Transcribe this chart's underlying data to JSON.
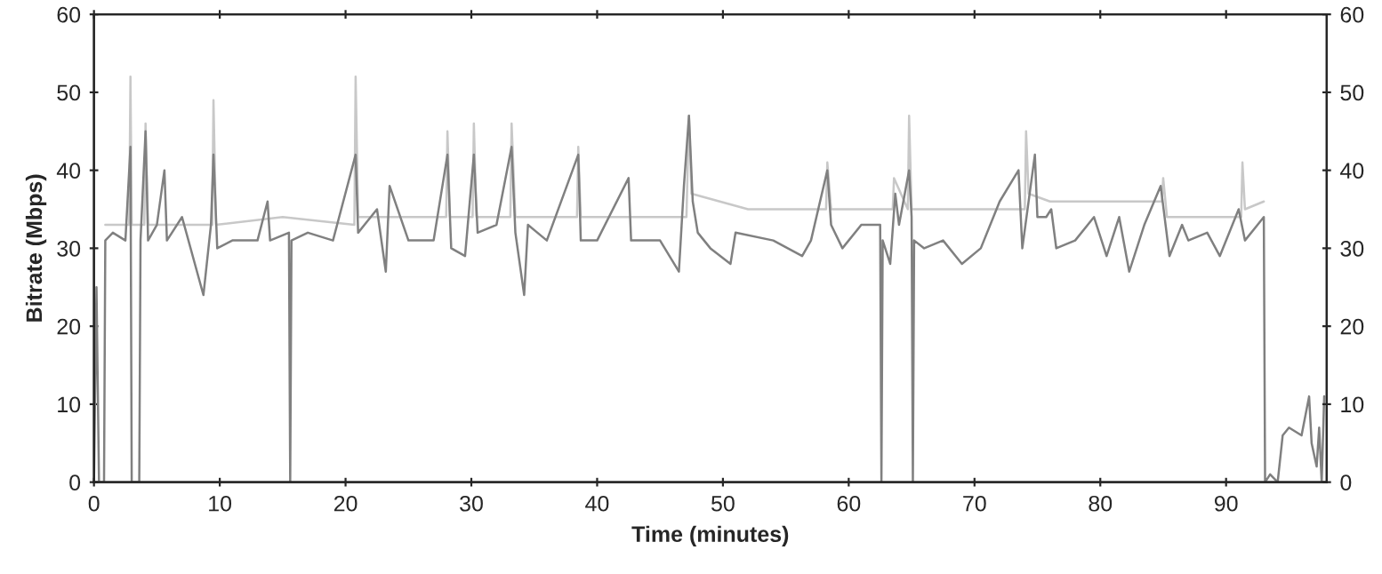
{
  "chart_data": {
    "type": "line",
    "xlabel": "Time (minutes)",
    "ylabel": "Bitrate (Mbps)",
    "xlim": [
      0,
      98
    ],
    "xticks": [
      0,
      10,
      20,
      30,
      40,
      50,
      60,
      70,
      80,
      90
    ],
    "ylim": [
      0,
      60
    ],
    "yticks": [
      0,
      10,
      20,
      30,
      40,
      50,
      60
    ],
    "y2lim": [
      0,
      60
    ],
    "y2ticks": [
      0,
      10,
      20,
      30,
      40,
      50,
      60
    ],
    "grid": false,
    "marker": "none",
    "line_style": "solid",
    "series": [
      {
        "color": "#c8c8c8",
        "x": [
          0.9,
          2.8,
          2.9,
          3.0,
          4.0,
          4.1,
          4.3,
          9.4,
          9.5,
          9.7,
          15,
          20.7,
          20.8,
          21,
          28.0,
          28.1,
          28.3,
          30.1,
          30.2,
          30.4,
          33.1,
          33.2,
          33.5,
          38.4,
          38.5,
          38.7,
          47.1,
          47.3,
          47.5,
          52,
          58.2,
          58.3,
          58.6,
          63.5,
          63.6,
          64.7,
          64.8,
          65.0,
          70,
          74.0,
          74.1,
          74.3,
          76,
          84.9,
          85,
          85.3,
          91.2,
          91.3,
          91.5,
          93
        ],
        "values": [
          33,
          33,
          52,
          33,
          33,
          46,
          33,
          33,
          49,
          33,
          34,
          33,
          52,
          34,
          34,
          45,
          34,
          34,
          46,
          34,
          34,
          46,
          34,
          34,
          43,
          34,
          34,
          47,
          37,
          35,
          35,
          41,
          35,
          35,
          39,
          35,
          47,
          35,
          35,
          35,
          45,
          37,
          36,
          36,
          39,
          34,
          34,
          41,
          35,
          36
        ]
      },
      {
        "color": "#808080",
        "x": [
          0,
          0.2,
          0.4,
          0.8,
          0.9,
          1.5,
          2.5,
          2.9,
          3.0,
          3.6,
          3.7,
          4.1,
          4.3,
          5,
          5.6,
          5.8,
          7,
          8.7,
          9.3,
          9.5,
          9.8,
          11,
          13,
          13.8,
          14,
          15.5,
          15.6,
          15.7,
          17,
          19,
          20.8,
          21,
          22.5,
          23.2,
          23.5,
          25,
          27,
          28.1,
          28.4,
          29.5,
          30.2,
          30.5,
          32,
          33.2,
          33.5,
          34.2,
          34.5,
          36,
          38.5,
          38.7,
          40,
          42.5,
          42.7,
          45,
          46.5,
          46.9,
          47.3,
          47.6,
          48,
          49,
          50.6,
          51,
          54,
          56.3,
          57,
          58.3,
          58.6,
          59.5,
          61,
          62.5,
          62.6,
          62.7,
          63.3,
          63.7,
          64,
          64.8,
          65.0,
          65.1,
          65.2,
          66,
          67.5,
          69,
          70.5,
          72,
          73.5,
          73.8,
          74.8,
          75,
          75.7,
          76.1,
          76.5,
          78,
          79.5,
          80.5,
          81.5,
          82.3,
          83.5,
          84.8,
          85.5,
          86.5,
          87,
          88.5,
          89.5,
          91,
          91.5,
          93,
          93.1,
          93.5,
          94.1,
          94.5,
          95,
          96,
          96.6,
          96.8,
          97.2,
          97.4,
          97.6,
          97.8
        ],
        "values": [
          0,
          25,
          0,
          0,
          31,
          32,
          31,
          43,
          0,
          0,
          31,
          45,
          31,
          33,
          40,
          31,
          34,
          24,
          33,
          42,
          30,
          31,
          31,
          36,
          31,
          32,
          0,
          31,
          32,
          31,
          42,
          32,
          35,
          27,
          38,
          31,
          31,
          42,
          30,
          29,
          42,
          32,
          33,
          43,
          32,
          24,
          33,
          31,
          42,
          31,
          31,
          39,
          31,
          31,
          27,
          38,
          47,
          36,
          32,
          30,
          28,
          32,
          31,
          29,
          31,
          40,
          33,
          30,
          33,
          33,
          0,
          31,
          28,
          37,
          33,
          40,
          34,
          0,
          31,
          30,
          31,
          28,
          30,
          36,
          40,
          30,
          42,
          34,
          34,
          35,
          30,
          31,
          34,
          29,
          34,
          27,
          33,
          38,
          29,
          33,
          31,
          32,
          29,
          35,
          31,
          34,
          0,
          1,
          0,
          6,
          7,
          6,
          11,
          5,
          2,
          7,
          0,
          11
        ]
      }
    ]
  }
}
